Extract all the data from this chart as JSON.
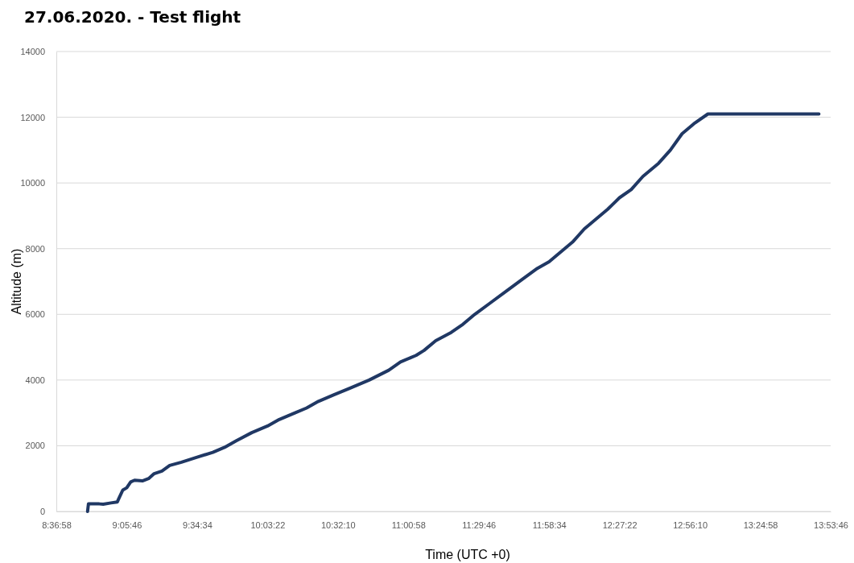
{
  "chart_data": {
    "type": "line",
    "title": "27.06.2020. - Test flight",
    "xlabel": "Time (UTC +0)",
    "ylabel": "Altitude (m)",
    "xlim": [
      8.6161,
      13.8961
    ],
    "xticks": [
      {
        "value": 8.6161,
        "label": "8:36:58"
      },
      {
        "value": 9.0961,
        "label": "9:05:46"
      },
      {
        "value": 9.5761,
        "label": "9:34:34"
      },
      {
        "value": 10.0561,
        "label": "10:03:22"
      },
      {
        "value": 10.5361,
        "label": "10:32:10"
      },
      {
        "value": 11.0161,
        "label": "11:00:58"
      },
      {
        "value": 11.4961,
        "label": "11:29:46"
      },
      {
        "value": 11.9761,
        "label": "11:58:34"
      },
      {
        "value": 12.4561,
        "label": "12:27:22"
      },
      {
        "value": 12.9361,
        "label": "12:56:10"
      },
      {
        "value": 13.4161,
        "label": "13:24:58"
      },
      {
        "value": 13.8961,
        "label": "13:53:46"
      }
    ],
    "ylim": [
      0,
      14000
    ],
    "yticks": [
      0,
      2000,
      4000,
      6000,
      8000,
      10000,
      12000,
      14000
    ],
    "grid": "y",
    "marker": "none",
    "line_style": "solid",
    "series": [
      {
        "color": "#203864",
        "x": [
          8.829,
          8.835,
          8.909,
          8.936,
          8.989,
          9.032,
          9.043,
          9.069,
          9.096,
          9.123,
          9.149,
          9.203,
          9.245,
          9.283,
          9.336,
          9.389,
          9.469,
          9.576,
          9.683,
          9.763,
          9.843,
          9.949,
          10.056,
          10.136,
          10.243,
          10.323,
          10.403,
          10.509,
          10.616,
          10.749,
          10.883,
          10.963,
          11.069,
          11.123,
          11.203,
          11.309,
          11.389,
          11.469,
          11.576,
          11.683,
          11.789,
          11.896,
          11.976,
          12.056,
          12.136,
          12.216,
          12.296,
          12.376,
          12.456,
          12.536,
          12.616,
          12.723,
          12.803,
          12.883,
          12.963,
          13.059,
          13.816
        ],
        "values": [
          0,
          230,
          230,
          220,
          260,
          290,
          400,
          650,
          720,
          900,
          950,
          930,
          1000,
          1150,
          1230,
          1400,
          1500,
          1650,
          1800,
          1950,
          2150,
          2400,
          2600,
          2800,
          3000,
          3150,
          3350,
          3550,
          3750,
          4000,
          4300,
          4550,
          4750,
          4900,
          5200,
          5450,
          5700,
          6000,
          6350,
          6700,
          7050,
          7400,
          7600,
          7900,
          8200,
          8600,
          8900,
          9200,
          9550,
          9800,
          10200,
          10600,
          11000,
          11500,
          11800,
          12100,
          12100
        ]
      }
    ]
  }
}
